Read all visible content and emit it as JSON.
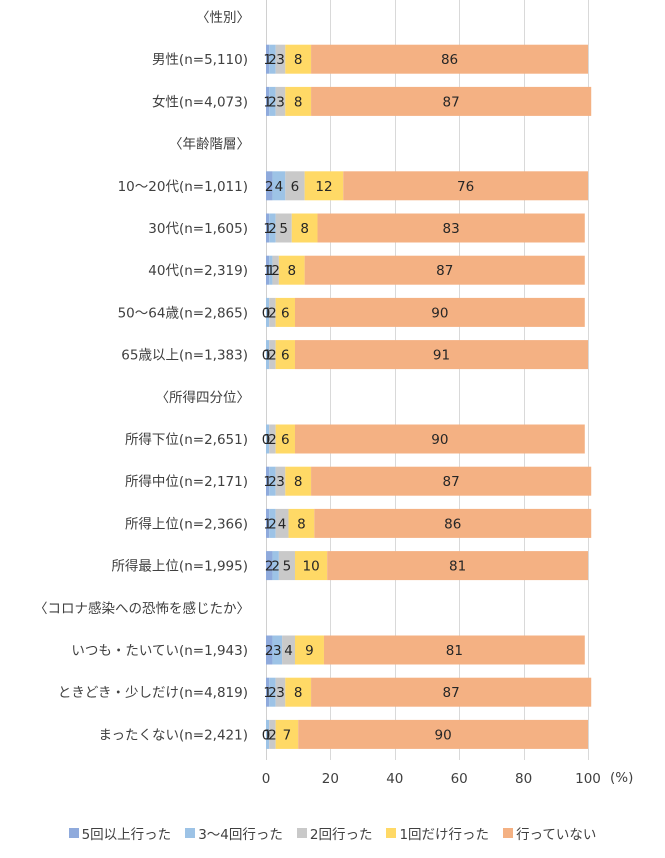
{
  "chart_data": {
    "type": "bar",
    "orientation": "horizontal-stacked-100",
    "title": "",
    "xlabel": "",
    "ylabel": "",
    "x_unit_label": "(%)",
    "xlim": [
      0,
      100
    ],
    "x_ticks": [
      0,
      20,
      40,
      60,
      80,
      100
    ],
    "grid": true,
    "legend_position": "bottom",
    "series": [
      {
        "name": "5回以上行った",
        "color": "#8faadc"
      },
      {
        "name": "3～4回行った",
        "color": "#9dc3e6"
      },
      {
        "name": "2回行った",
        "color": "#c9c9c9"
      },
      {
        "name": "1回だけ行った",
        "color": "#ffd966"
      },
      {
        "name": "行っていない",
        "color": "#f4b183"
      }
    ],
    "rows": [
      {
        "kind": "group",
        "label": "〈性別〉"
      },
      {
        "kind": "bar",
        "label": "男性(n=5,110)",
        "values": [
          1,
          2,
          3,
          8,
          86
        ]
      },
      {
        "kind": "bar",
        "label": "女性(n=4,073)",
        "values": [
          1,
          2,
          3,
          8,
          87
        ]
      },
      {
        "kind": "group",
        "label": "〈年齢階層〉"
      },
      {
        "kind": "bar",
        "label": "10～20代(n=1,011)",
        "values": [
          2,
          4,
          6,
          12,
          76
        ]
      },
      {
        "kind": "bar",
        "label": "30代(n=1,605)",
        "values": [
          1,
          2,
          5,
          8,
          83
        ]
      },
      {
        "kind": "bar",
        "label": "40代(n=2,319)",
        "values": [
          1,
          1,
          2,
          8,
          87
        ]
      },
      {
        "kind": "bar",
        "label": "50～64歳(n=2,865)",
        "values": [
          0,
          1,
          2,
          6,
          90
        ]
      },
      {
        "kind": "bar",
        "label": "65歳以上(n=1,383)",
        "values": [
          0,
          1,
          2,
          6,
          91
        ]
      },
      {
        "kind": "group",
        "label": "〈所得四分位〉"
      },
      {
        "kind": "bar",
        "label": "所得下位(n=2,651)",
        "values": [
          0,
          1,
          2,
          6,
          90
        ]
      },
      {
        "kind": "bar",
        "label": "所得中位(n=2,171)",
        "values": [
          1,
          2,
          3,
          8,
          87
        ]
      },
      {
        "kind": "bar",
        "label": "所得上位(n=2,366)",
        "values": [
          1,
          2,
          4,
          8,
          86
        ]
      },
      {
        "kind": "bar",
        "label": "所得最上位(n=1,995)",
        "values": [
          2,
          2,
          5,
          10,
          81
        ]
      },
      {
        "kind": "group",
        "label": "〈コロナ感染への恐怖を感じたか〉"
      },
      {
        "kind": "bar",
        "label": "いつも・たいてい(n=1,943)",
        "values": [
          2,
          3,
          4,
          9,
          81
        ]
      },
      {
        "kind": "bar",
        "label": "ときどき・少しだけ(n=4,819)",
        "values": [
          1,
          2,
          3,
          8,
          87
        ]
      },
      {
        "kind": "bar",
        "label": "まったくない(n=2,421)",
        "values": [
          0,
          1,
          2,
          7,
          90
        ]
      }
    ]
  },
  "legend": {
    "items": [
      {
        "label": "5回以上行った",
        "color": "#8faadc"
      },
      {
        "label": "3～4回行った",
        "color": "#9dc3e6"
      },
      {
        "label": "2回行った",
        "color": "#c9c9c9"
      },
      {
        "label": "1回だけ行った",
        "color": "#ffd966"
      },
      {
        "label": "行っていない",
        "color": "#f4b183"
      }
    ]
  }
}
